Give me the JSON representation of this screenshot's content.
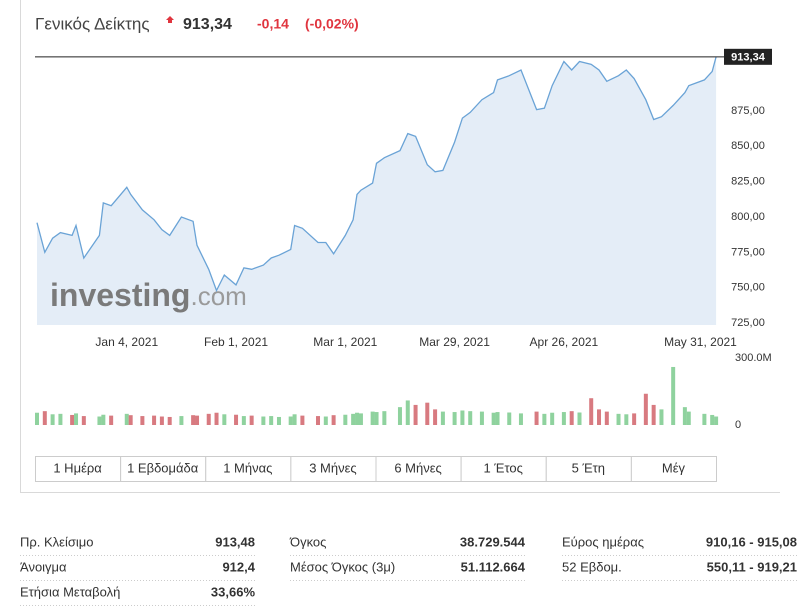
{
  "header": {
    "name": "Γενικός Δείκτης",
    "price": "913,34",
    "change": "-0,14",
    "change_pct": "(-0,02%)"
  },
  "chart_data": {
    "type": "area",
    "x": [
      "2020-12-12",
      "2020-12-14",
      "2020-12-16",
      "2020-12-18",
      "2020-12-21",
      "2020-12-22",
      "2020-12-24",
      "2020-12-28",
      "2020-12-29",
      "2020-12-31",
      "2021-01-04",
      "2021-01-05",
      "2021-01-08",
      "2021-01-11",
      "2021-01-13",
      "2021-01-15",
      "2021-01-18",
      "2021-01-21",
      "2021-01-22",
      "2021-01-25",
      "2021-01-27",
      "2021-01-29",
      "2021-02-01",
      "2021-02-03",
      "2021-02-05",
      "2021-02-08",
      "2021-02-10",
      "2021-02-12",
      "2021-02-15",
      "2021-02-16",
      "2021-02-18",
      "2021-02-22",
      "2021-02-24",
      "2021-02-26",
      "2021-03-01",
      "2021-03-03",
      "2021-03-04",
      "2021-03-05",
      "2021-03-08",
      "2021-03-09",
      "2021-03-11",
      "2021-03-15",
      "2021-03-17",
      "2021-03-19",
      "2021-03-22",
      "2021-03-24",
      "2021-03-26",
      "2021-03-29",
      "2021-03-31",
      "2021-04-02",
      "2021-04-05",
      "2021-04-08",
      "2021-04-09",
      "2021-04-12",
      "2021-04-15",
      "2021-04-19",
      "2021-04-21",
      "2021-04-23",
      "2021-04-26",
      "2021-04-28",
      "2021-04-30",
      "2021-05-03",
      "2021-05-05",
      "2021-05-07",
      "2021-05-10",
      "2021-05-12",
      "2021-05-14",
      "2021-05-17",
      "2021-05-19",
      "2021-05-21",
      "2021-05-24",
      "2021-05-27",
      "2021-05-28",
      "2021-06-01",
      "2021-06-03",
      "2021-06-04"
    ],
    "values": [
      796,
      775,
      785,
      789,
      787,
      794,
      771,
      787,
      810,
      808,
      821,
      816,
      805,
      798,
      791,
      787,
      800,
      797,
      780,
      763,
      748,
      759,
      752,
      764,
      763,
      766,
      771,
      773,
      777,
      794,
      792,
      782,
      782,
      774,
      787,
      798,
      816,
      819,
      824,
      838,
      842,
      847,
      859,
      857,
      837,
      832,
      833,
      853,
      870,
      874,
      883,
      888,
      897,
      900,
      904,
      876,
      877,
      893,
      910,
      904,
      910,
      908,
      904,
      896,
      900,
      904,
      898,
      883,
      869,
      871,
      879,
      888,
      893,
      897,
      903,
      913.34
    ],
    "color": "#6aa3d6",
    "fill": "#e4edf7",
    "xlim": [
      "2020-12-12",
      "2021-06-05"
    ],
    "xticks": [
      {
        "value": "2021-01-04",
        "label": "Jan 4, 2021"
      },
      {
        "value": "2021-02-01",
        "label": "Feb 1, 2021"
      },
      {
        "value": "2021-03-01",
        "label": "Mar 1, 2021"
      },
      {
        "value": "2021-03-29",
        "label": "Mar 29, 2021"
      },
      {
        "value": "2021-04-26",
        "label": "Apr 26, 2021"
      },
      {
        "value": "2021-05-31",
        "label": "May 31, 2021"
      }
    ],
    "ylim": [
      723.6,
      921.7
    ],
    "yticks": [
      {
        "value": 725,
        "label": "725,00"
      },
      {
        "value": 750,
        "label": "750,00"
      },
      {
        "value": 775,
        "label": "775,00"
      },
      {
        "value": 800,
        "label": "800,00"
      },
      {
        "value": 825,
        "label": "825,00"
      },
      {
        "value": 850,
        "label": "850,00"
      },
      {
        "value": 875,
        "label": "875,00"
      }
    ],
    "watermark": [
      "investing",
      ".com"
    ],
    "volume": {
      "values": [
        55000000,
        62000000,
        48000000,
        50000000,
        45000000,
        52000000,
        40000000,
        38000000,
        46000000,
        42000000,
        50000000,
        44000000,
        40000000,
        42000000,
        38000000,
        36000000,
        40000000,
        44000000,
        42000000,
        50000000,
        55000000,
        48000000,
        46000000,
        40000000,
        42000000,
        38000000,
        40000000,
        36000000,
        38000000,
        48000000,
        42000000,
        40000000,
        38000000,
        44000000,
        46000000,
        50000000,
        55000000,
        52000000,
        60000000,
        58000000,
        62000000,
        80000000,
        110000000,
        90000000,
        100000000,
        70000000,
        60000000,
        58000000,
        65000000,
        62000000,
        60000000,
        55000000,
        58000000,
        56000000,
        52000000,
        60000000,
        50000000,
        55000000,
        58000000,
        62000000,
        56000000,
        120000000,
        70000000,
        60000000,
        50000000,
        48000000,
        52000000,
        140000000,
        90000000,
        70000000,
        260000000,
        80000000,
        60000000,
        50000000,
        45000000,
        38000000
      ],
      "ylim": [
        0,
        336000000
      ],
      "yticks": [
        0,
        {
          "value": 300000000,
          "label": "300.0M"
        }
      ],
      "up_color": "#8fd29e",
      "down_color": "#d87a80"
    }
  },
  "tabs": [
    "1 Ημέρα",
    "1 Εβδομάδα",
    "1 Μήνας",
    "3 Μήνες",
    "6 Μήνες",
    "1 Έτος",
    "5 Έτη",
    "Μέγ"
  ],
  "stats": [
    [
      "Πρ. Κλείσιμο",
      "913,48"
    ],
    [
      "Άνοιγμα",
      "912,4"
    ],
    [
      "Ετήσια Μεταβολή",
      "33,66%"
    ],
    [
      "Όγκος",
      "38.729.544"
    ],
    [
      "Μέσος Όγκος (3μ)",
      "51.112.664"
    ],
    [
      "Εύρος ημέρας",
      "910,16 - 915,08"
    ],
    [
      "52 Εβδομ.",
      "550,11 - 919,21"
    ]
  ]
}
